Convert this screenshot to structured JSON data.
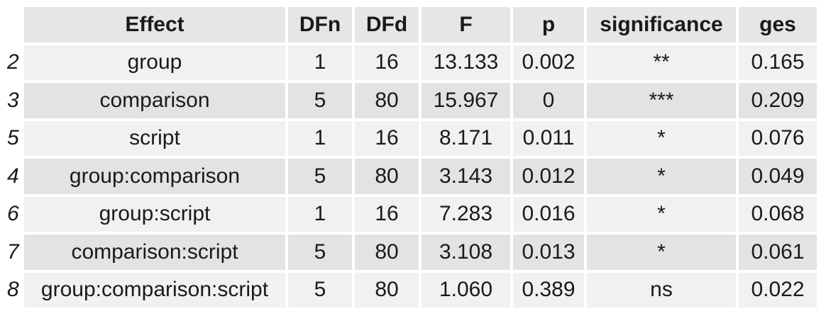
{
  "chart_data": {
    "type": "table",
    "columns": [
      "Effect",
      "DFn",
      "DFd",
      "F",
      "p",
      "significance",
      "ges"
    ],
    "rows": [
      {
        "rowname": "2",
        "cells": [
          "group",
          "1",
          "16",
          "13.133",
          "0.002",
          "**",
          "0.165"
        ]
      },
      {
        "rowname": "3",
        "cells": [
          "comparison",
          "5",
          "80",
          "15.967",
          "0",
          "***",
          "0.209"
        ]
      },
      {
        "rowname": "5",
        "cells": [
          "script",
          "1",
          "16",
          "8.171",
          "0.011",
          "*",
          "0.076"
        ]
      },
      {
        "rowname": "4",
        "cells": [
          "group:comparison",
          "5",
          "80",
          "3.143",
          "0.012",
          "*",
          "0.049"
        ]
      },
      {
        "rowname": "6",
        "cells": [
          "group:script",
          "1",
          "16",
          "7.283",
          "0.016",
          "*",
          "0.068"
        ]
      },
      {
        "rowname": "7",
        "cells": [
          "comparison:script",
          "5",
          "80",
          "3.108",
          "0.013",
          "*",
          "0.061"
        ]
      },
      {
        "rowname": "8",
        "cells": [
          "group:comparison:script",
          "5",
          "80",
          "1.060",
          "0.389",
          "ns",
          "0.022"
        ]
      }
    ],
    "colors": {
      "header_bg": "#e6e6e6",
      "row_light": "#f1f1f1",
      "row_dark": "#e3e3e3",
      "text": "#1a1a1a"
    }
  }
}
